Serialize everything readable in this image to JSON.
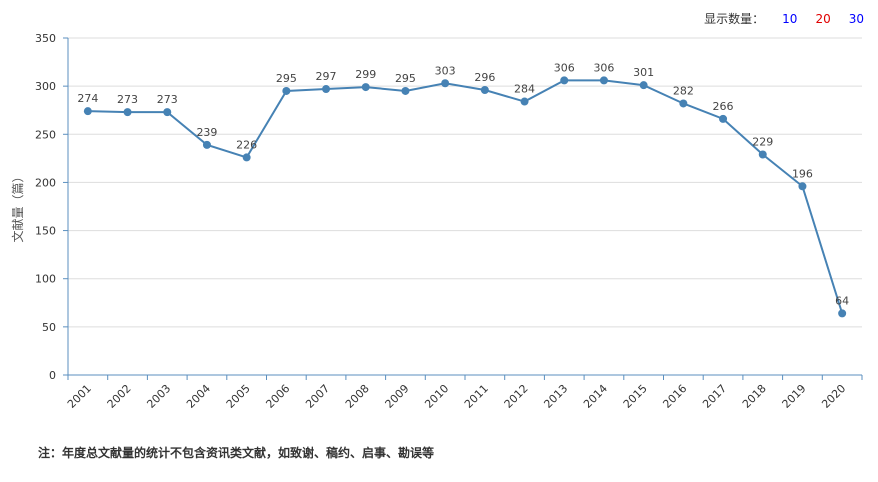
{
  "controls": {
    "label": "显示数量：",
    "options": [
      {
        "label": "10",
        "color": "#0000ff"
      },
      {
        "label": "20",
        "color": "#e00000"
      },
      {
        "label": "30",
        "color": "#0000ff"
      }
    ]
  },
  "chart_data": {
    "type": "line",
    "categories": [
      "2001",
      "2002",
      "2003",
      "2004",
      "2005",
      "2006",
      "2007",
      "2008",
      "2009",
      "2010",
      "2011",
      "2012",
      "2013",
      "2014",
      "2015",
      "2016",
      "2017",
      "2018",
      "2019",
      "2020"
    ],
    "values": [
      274,
      273,
      273,
      239,
      226,
      295,
      297,
      299,
      295,
      303,
      296,
      284,
      306,
      306,
      301,
      282,
      266,
      229,
      196,
      64
    ],
    "ylabel": "文献量（篇）",
    "ylim": [
      0,
      350
    ],
    "yticks": [
      0,
      50,
      100,
      150,
      200,
      250,
      300,
      350
    ],
    "grid": true,
    "line_color": "#4682b4"
  },
  "footnote": "注：年度总文献量的统计不包含资讯类文献，如致谢、稿约、启事、勘误等"
}
